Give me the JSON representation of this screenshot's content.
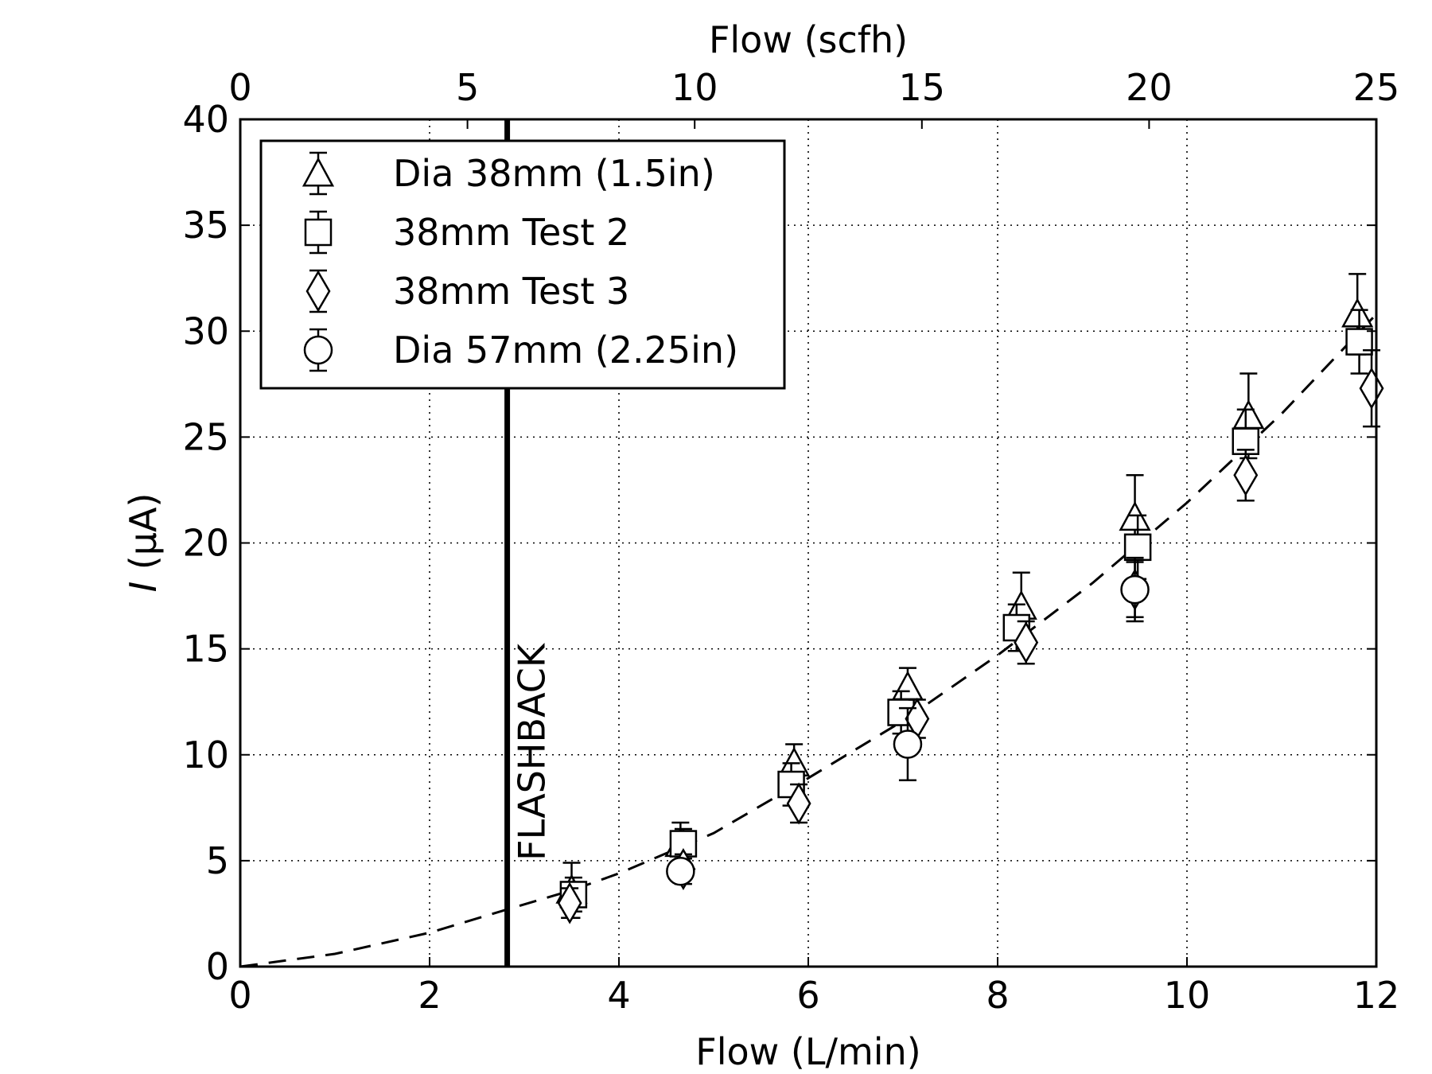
{
  "chart_data": {
    "type": "scatter",
    "xlabel": "Flow (L/min)",
    "x2label": "Flow (scfh)",
    "ylabel_italic": "I",
    "ylabel_rest": " (μA)",
    "xlim": [
      0,
      12
    ],
    "x2lim": [
      0,
      25
    ],
    "ylim": [
      0,
      40
    ],
    "xticks": [
      "0",
      "2",
      "4",
      "6",
      "8",
      "10",
      "12"
    ],
    "x2ticks": [
      "0",
      "5",
      "10",
      "15",
      "20",
      "25"
    ],
    "yticks": [
      "0",
      "5",
      "10",
      "15",
      "20",
      "25",
      "30",
      "35",
      "40"
    ],
    "grid": true,
    "legend_position": "top-left",
    "annotation": {
      "text": "FLASHBACK",
      "x": 2.82
    },
    "series": [
      {
        "name": "Dia 38mm (1.5in)",
        "marker": "triangle",
        "points": [
          {
            "x": 3.5,
            "y": 3.6,
            "err": 1.3
          },
          {
            "x": 4.65,
            "y": 5.8,
            "err": 1.0
          },
          {
            "x": 5.85,
            "y": 9.6,
            "err": 0.9
          },
          {
            "x": 7.05,
            "y": 13.2,
            "err": 0.9
          },
          {
            "x": 8.25,
            "y": 17.0,
            "err": 1.6
          },
          {
            "x": 9.45,
            "y": 21.2,
            "err": 2.0
          },
          {
            "x": 10.65,
            "y": 26.0,
            "err": 2.0
          },
          {
            "x": 11.8,
            "y": 30.8,
            "err": 1.9
          }
        ]
      },
      {
        "name": "38mm Test 2",
        "marker": "square",
        "points": [
          {
            "x": 3.52,
            "y": 3.4,
            "err": 0.8
          },
          {
            "x": 4.68,
            "y": 5.8,
            "err": 0.7
          },
          {
            "x": 5.82,
            "y": 8.6,
            "err": 1.0
          },
          {
            "x": 6.98,
            "y": 12.0,
            "err": 1.0
          },
          {
            "x": 8.2,
            "y": 16.0,
            "err": 1.1
          },
          {
            "x": 9.48,
            "y": 19.8,
            "err": 1.5
          },
          {
            "x": 10.62,
            "y": 24.8,
            "err": 1.5
          },
          {
            "x": 11.82,
            "y": 29.5,
            "err": 1.5
          }
        ]
      },
      {
        "name": "38mm Test 3",
        "marker": "diamond",
        "points": [
          {
            "x": 3.48,
            "y": 3.0,
            "err": 0.7
          },
          {
            "x": 4.68,
            "y": 4.6,
            "err": 0.7
          },
          {
            "x": 5.9,
            "y": 7.7,
            "err": 0.9
          },
          {
            "x": 7.15,
            "y": 11.7,
            "err": 0.9
          },
          {
            "x": 8.3,
            "y": 15.3,
            "err": 1.0
          },
          {
            "x": 9.45,
            "y": 17.8,
            "err": 1.3
          },
          {
            "x": 10.62,
            "y": 23.2,
            "err": 1.2
          },
          {
            "x": 11.95,
            "y": 27.3,
            "err": 1.8
          }
        ]
      },
      {
        "name": "Dia 57mm (2.25in)",
        "marker": "circle",
        "points": [
          {
            "x": 4.65,
            "y": 4.5,
            "err": 0.5
          },
          {
            "x": 7.05,
            "y": 10.5,
            "err": 1.7
          },
          {
            "x": 9.45,
            "y": 17.8,
            "err": 1.5
          }
        ]
      }
    ],
    "fit": {
      "name": "dashed fit",
      "style": "dashed",
      "x": [
        0,
        1,
        2,
        2.82,
        3.5,
        4,
        5,
        6,
        7,
        8,
        9,
        10,
        11,
        12
      ],
      "y": [
        0,
        0.6,
        1.6,
        2.7,
        3.6,
        4.4,
        6.3,
        8.9,
        11.6,
        14.7,
        18.1,
        21.9,
        26.1,
        30.8
      ]
    }
  }
}
